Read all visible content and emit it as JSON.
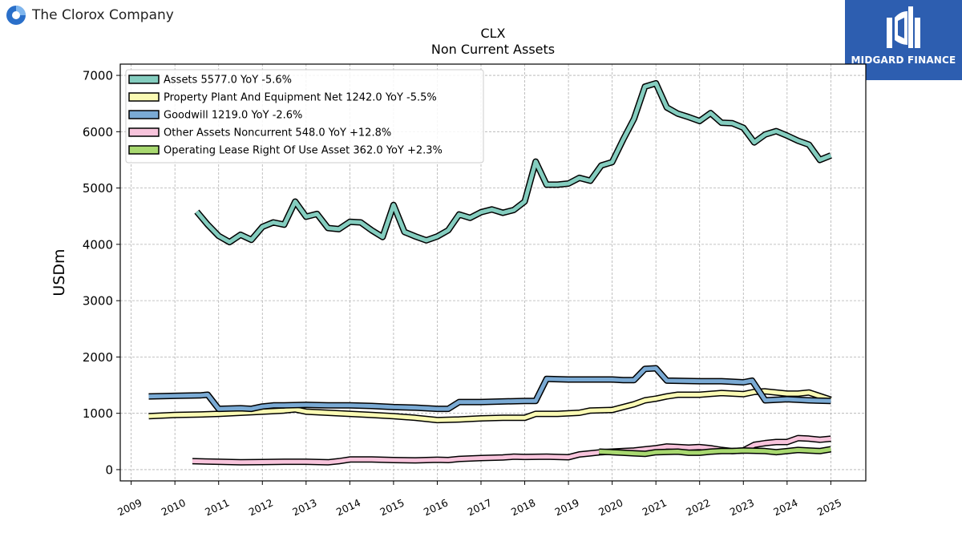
{
  "header": {
    "company_name": "The Clorox Company",
    "brand": "MIDGARD FINANCE"
  },
  "colors": {
    "assets": "#84cdbf",
    "ppe": "#fafab4",
    "goodwill": "#7aaad4",
    "other": "#f8c4dc",
    "lease": "#a8d870"
  },
  "chart_data": {
    "type": "line",
    "title": "CLX",
    "subtitle": "Non Current  Assets",
    "ylabel": "USDm",
    "xlabel": "",
    "ylim": [
      -200,
      7200
    ],
    "xlim": [
      2008.75,
      2025.8
    ],
    "yticks": [
      0,
      1000,
      2000,
      3000,
      4000,
      5000,
      6000,
      7000
    ],
    "xticks": [
      "2009",
      "2010",
      "2011",
      "2012",
      "2013",
      "2014",
      "2015",
      "2016",
      "2017",
      "2018",
      "2019",
      "2020",
      "2021",
      "2022",
      "2023",
      "2024",
      "2025"
    ],
    "grid": true,
    "legend_position": "top-left",
    "series": [
      {
        "key": "assets",
        "name": "Assets  5577.0 YoY -5.6%",
        "x": [
          2010.5,
          2010.75,
          2011.0,
          2011.25,
          2011.5,
          2011.75,
          2012.0,
          2012.25,
          2012.5,
          2012.75,
          2013.0,
          2013.25,
          2013.5,
          2013.75,
          2014.0,
          2014.25,
          2014.5,
          2014.75,
          2015.0,
          2015.25,
          2015.5,
          2015.75,
          2016.0,
          2016.25,
          2016.5,
          2016.75,
          2017.0,
          2017.25,
          2017.5,
          2017.75,
          2018.0,
          2018.25,
          2018.5,
          2018.75,
          2019.0,
          2019.25,
          2019.5,
          2019.75,
          2020.0,
          2020.25,
          2020.5,
          2020.75,
          2021.0,
          2021.25,
          2021.5,
          2021.75,
          2022.0,
          2022.25,
          2022.5,
          2022.75,
          2023.0,
          2023.25,
          2023.5,
          2023.75,
          2024.0,
          2024.25,
          2024.5,
          2024.75,
          2025.0
        ],
        "y": [
          4580,
          4350,
          4150,
          4040,
          4170,
          4080,
          4310,
          4390,
          4350,
          4760,
          4490,
          4540,
          4290,
          4270,
          4400,
          4390,
          4250,
          4130,
          4700,
          4220,
          4140,
          4070,
          4140,
          4250,
          4530,
          4470,
          4570,
          4620,
          4560,
          4610,
          4760,
          5470,
          5060,
          5060,
          5080,
          5180,
          5130,
          5400,
          5460,
          5860,
          6230,
          6800,
          6860,
          6430,
          6320,
          6260,
          6190,
          6330,
          6160,
          6150,
          6070,
          5810,
          5950,
          6010,
          5930,
          5840,
          5770,
          5500,
          5577
        ]
      },
      {
        "key": "ppe",
        "name": "Property Plant And Equipment Net  1242.0 YoY -5.5%",
        "x": [
          2009.4,
          2010.0,
          2010.6,
          2011.0,
          2011.5,
          2012.0,
          2012.5,
          2012.75,
          2013.0,
          2013.5,
          2014.0,
          2014.5,
          2015.0,
          2015.5,
          2016.0,
          2016.5,
          2017.0,
          2017.5,
          2018.0,
          2018.25,
          2018.75,
          2019.25,
          2019.5,
          2020.0,
          2020.5,
          2020.75,
          2021.0,
          2021.25,
          2021.5,
          2022.0,
          2022.5,
          2023.0,
          2023.25,
          2023.5,
          2024.0,
          2024.25,
          2024.5,
          2025.0
        ],
        "y": [
          950,
          970,
          980,
          990,
          1010,
          1030,
          1050,
          1070,
          1030,
          1010,
          990,
          970,
          950,
          920,
          880,
          890,
          910,
          920,
          920,
          990,
          990,
          1010,
          1050,
          1060,
          1160,
          1230,
          1260,
          1300,
          1330,
          1330,
          1360,
          1340,
          1380,
          1390,
          1350,
          1350,
          1370,
          1242
        ]
      },
      {
        "key": "goodwill",
        "name": "Goodwill  1219.0 YoY -2.6%",
        "x": [
          2009.4,
          2010.0,
          2010.6,
          2010.75,
          2011.0,
          2011.5,
          2011.75,
          2012.0,
          2012.25,
          2012.5,
          2013.0,
          2013.5,
          2014.0,
          2014.5,
          2015.0,
          2015.5,
          2016.0,
          2016.25,
          2016.5,
          2017.0,
          2017.5,
          2018.0,
          2018.25,
          2018.5,
          2019.0,
          2019.5,
          2020.0,
          2020.25,
          2020.5,
          2020.75,
          2021.0,
          2021.25,
          2022.0,
          2022.5,
          2023.0,
          2023.2,
          2023.5,
          2024.0,
          2024.5,
          2025.0
        ],
        "y": [
          1300,
          1310,
          1320,
          1330,
          1080,
          1090,
          1080,
          1120,
          1140,
          1140,
          1150,
          1140,
          1140,
          1130,
          1110,
          1100,
          1080,
          1080,
          1200,
          1200,
          1210,
          1220,
          1220,
          1610,
          1600,
          1600,
          1600,
          1590,
          1590,
          1790,
          1800,
          1580,
          1570,
          1570,
          1550,
          1580,
          1230,
          1250,
          1230,
          1219
        ]
      },
      {
        "key": "other",
        "name": "Other Assets Noncurrent  548.0 YoY +12.8%",
        "x": [
          2010.4,
          2011.0,
          2011.5,
          2012.0,
          2012.5,
          2013.0,
          2013.5,
          2013.75,
          2014.0,
          2014.5,
          2015.0,
          2015.5,
          2016.0,
          2016.25,
          2016.5,
          2017.0,
          2017.5,
          2017.75,
          2018.0,
          2018.5,
          2019.0,
          2019.25,
          2019.5,
          2019.75,
          2020.0,
          2020.25,
          2020.5,
          2020.75,
          2021.0,
          2021.25,
          2021.5,
          2021.75,
          2022.0,
          2022.25,
          2022.5,
          2022.75,
          2023.0,
          2023.25,
          2023.5,
          2023.75,
          2024.0,
          2024.25,
          2024.5,
          2024.75,
          2025.0
        ],
        "y": [
          150,
          140,
          130,
          135,
          140,
          140,
          130,
          150,
          180,
          180,
          170,
          165,
          175,
          170,
          190,
          205,
          215,
          230,
          225,
          230,
          220,
          270,
          290,
          310,
          320,
          330,
          340,
          360,
          380,
          410,
          400,
          390,
          400,
          380,
          350,
          330,
          340,
          440,
          470,
          490,
          490,
          560,
          550,
          530,
          548
        ]
      },
      {
        "key": "lease",
        "name": "Operating Lease Right Of Use Asset  362.0 YoY +2.3%",
        "x": [
          2019.7,
          2020.0,
          2020.25,
          2020.5,
          2020.75,
          2021.0,
          2021.5,
          2021.75,
          2022.0,
          2022.25,
          2022.5,
          2022.75,
          2023.0,
          2023.5,
          2023.75,
          2024.0,
          2024.25,
          2024.5,
          2024.75,
          2025.0
        ],
        "y": [
          320,
          310,
          300,
          290,
          280,
          310,
          320,
          300,
          300,
          320,
          330,
          330,
          340,
          330,
          310,
          330,
          350,
          340,
          330,
          362
        ]
      }
    ]
  }
}
